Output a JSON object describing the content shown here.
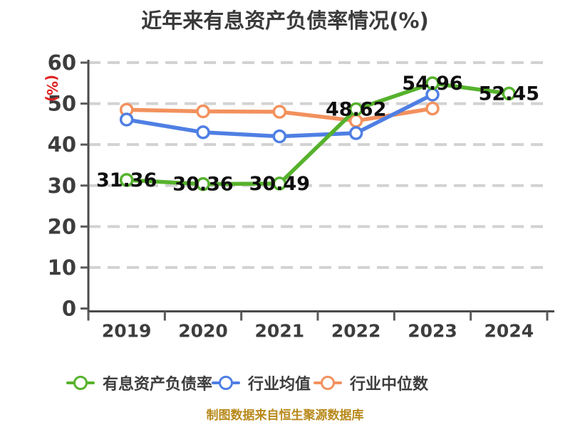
{
  "title": "近年来有息资产负债率情况(%)",
  "y_axis_label": "(%)",
  "footer": "制图数据来自恒生聚源数据库",
  "colors": {
    "title": "#3a3a3a",
    "axis": "#4a4a4a",
    "tick": "#5a5a5a",
    "tick_label": "#3d3d3d",
    "grid": "#d2d2d2",
    "data_label": "#0d0d0d",
    "y_axis_label": "#dd2222",
    "footer": "#b8891b",
    "legend_text": "#3d3d3d",
    "background": "#ffffff",
    "marker_fill": "#ffffff"
  },
  "chart_data": {
    "type": "line",
    "title": "近年来有息资产负债率情况(%)",
    "xlabel": "",
    "ylabel": "(%)",
    "x": [
      "2019",
      "2020",
      "2021",
      "2022",
      "2023",
      "2024"
    ],
    "ylim": [
      0,
      60
    ],
    "y_ticks": [
      0,
      10,
      20,
      30,
      40,
      50,
      60
    ],
    "grid": "horizontal-dashed",
    "legend_position": "bottom",
    "marker": "circle-white-fill",
    "series": [
      {
        "name": "有息资产负债率",
        "color": "#56b22d",
        "values": [
          31.36,
          30.36,
          30.49,
          48.62,
          54.96,
          52.45
        ],
        "labeled": true
      },
      {
        "name": "行业均值",
        "color": "#4f7fe3",
        "values": [
          46.1,
          43.0,
          42.0,
          42.8,
          52.2,
          null
        ],
        "labeled": false
      },
      {
        "name": "行业中位数",
        "color": "#f2915d",
        "values": [
          48.5,
          48.1,
          48.0,
          45.8,
          48.8,
          null
        ],
        "labeled": false
      }
    ]
  }
}
